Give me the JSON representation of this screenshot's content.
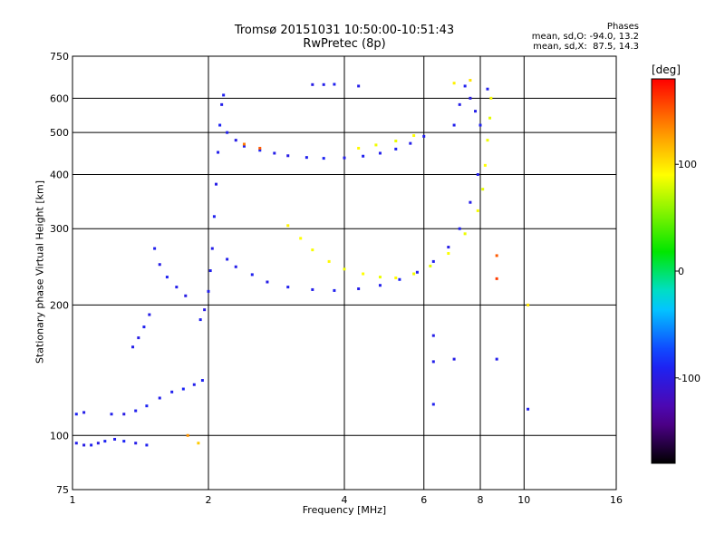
{
  "header": {
    "title_line1": "Tromsø 20151031 10:50:00-10:51:43",
    "title_line2": "RwPretec (8p)",
    "stats_title": "Phases",
    "stats_o": "mean, sd,O: -94.0, 13.2",
    "stats_x": "mean, sd,X:  87.5, 14.3"
  },
  "colorbar": {
    "unit": "[deg]",
    "range": [
      -180,
      180
    ],
    "ticks": [
      100,
      0,
      -100
    ],
    "tick_labels": [
      "100",
      "0",
      "-100"
    ]
  },
  "chart_data": {
    "type": "scatter",
    "xlabel": "Frequency [MHz]",
    "ylabel": "Stationary phase Virtual Height [km]",
    "xscale": "log",
    "yscale": "log",
    "xlim": [
      1,
      16
    ],
    "ylim": [
      75,
      750
    ],
    "grid": true,
    "xticks": [
      1,
      2,
      4,
      6,
      8,
      10,
      16
    ],
    "xtick_labels": [
      "1",
      "2",
      "4",
      "6",
      "8",
      "10",
      "16"
    ],
    "yticks": [
      75,
      100,
      200,
      300,
      400,
      500,
      600,
      750
    ],
    "ytick_labels": [
      "75",
      "100",
      "200",
      "300",
      "400",
      "500",
      "600",
      "750"
    ],
    "series": [
      {
        "mode": "O",
        "points": [
          [
            1.02,
            96,
            -95
          ],
          [
            1.06,
            95,
            -98
          ],
          [
            1.1,
            95,
            -92
          ],
          [
            1.14,
            96,
            -100
          ],
          [
            1.18,
            97,
            -90
          ],
          [
            1.24,
            98,
            -95
          ],
          [
            1.3,
            97,
            -88
          ],
          [
            1.38,
            96,
            -97
          ],
          [
            1.46,
            95,
            -92
          ],
          [
            1.02,
            112,
            -90
          ],
          [
            1.06,
            113,
            -96
          ],
          [
            1.22,
            112,
            -94
          ],
          [
            1.3,
            112,
            -99
          ],
          [
            1.38,
            114,
            -93
          ],
          [
            1.46,
            117,
            -90
          ],
          [
            1.56,
            122,
            -95
          ],
          [
            1.66,
            126,
            -92
          ],
          [
            1.76,
            128,
            -88
          ],
          [
            1.86,
            131,
            -94
          ],
          [
            1.94,
            134,
            -91
          ],
          [
            1.36,
            160,
            -95
          ],
          [
            1.4,
            168,
            -98
          ],
          [
            1.44,
            178,
            -92
          ],
          [
            1.48,
            190,
            -96
          ],
          [
            1.52,
            270,
            -93
          ],
          [
            1.56,
            248,
            -97
          ],
          [
            1.62,
            232,
            -91
          ],
          [
            1.7,
            220,
            -95
          ],
          [
            1.78,
            210,
            -98
          ],
          [
            1.92,
            185,
            -92
          ],
          [
            1.96,
            195,
            -99
          ],
          [
            2.0,
            215,
            -94
          ],
          [
            2.02,
            240,
            -93
          ],
          [
            2.04,
            270,
            -96
          ],
          [
            2.06,
            320,
            -92
          ],
          [
            2.08,
            380,
            -97
          ],
          [
            2.1,
            450,
            -94
          ],
          [
            2.12,
            520,
            -90
          ],
          [
            2.14,
            580,
            -95
          ],
          [
            2.16,
            610,
            -92
          ],
          [
            2.2,
            500,
            -93
          ],
          [
            2.3,
            480,
            -97
          ],
          [
            2.4,
            465,
            -95
          ],
          [
            2.6,
            455,
            -92
          ],
          [
            2.8,
            448,
            -96
          ],
          [
            3.0,
            442,
            -98
          ],
          [
            3.3,
            438,
            -93
          ],
          [
            3.6,
            436,
            -90
          ],
          [
            4.0,
            437,
            -95
          ],
          [
            4.4,
            441,
            -92
          ],
          [
            4.8,
            448,
            -94
          ],
          [
            5.2,
            458,
            -91
          ],
          [
            5.6,
            472,
            -95
          ],
          [
            6.0,
            490,
            -93
          ],
          [
            2.2,
            255,
            -94
          ],
          [
            2.3,
            245,
            -96
          ],
          [
            2.5,
            235,
            -92
          ],
          [
            2.7,
            226,
            -97
          ],
          [
            3.0,
            220,
            -93
          ],
          [
            3.4,
            217,
            -95
          ],
          [
            3.8,
            216,
            -92
          ],
          [
            4.3,
            218,
            -96
          ],
          [
            4.8,
            222,
            -94
          ],
          [
            5.3,
            229,
            -90
          ],
          [
            5.8,
            238,
            -95
          ],
          [
            6.3,
            252,
            -93
          ],
          [
            6.8,
            272,
            -97
          ],
          [
            7.2,
            300,
            -92
          ],
          [
            7.6,
            345,
            -96
          ],
          [
            7.9,
            400,
            -94
          ],
          [
            3.4,
            645,
            -98
          ],
          [
            3.6,
            645,
            -95
          ],
          [
            3.8,
            646,
            -92
          ],
          [
            4.3,
            640,
            -96
          ],
          [
            7.0,
            520,
            -93
          ],
          [
            7.2,
            580,
            -96
          ],
          [
            7.4,
            640,
            -92
          ],
          [
            7.6,
            600,
            -98
          ],
          [
            7.8,
            560,
            -95
          ],
          [
            8.0,
            520,
            -91
          ],
          [
            8.3,
            630,
            -94
          ],
          [
            6.3,
            170,
            -96
          ],
          [
            6.3,
            148,
            -94
          ],
          [
            6.3,
            118,
            -92
          ],
          [
            7.0,
            150,
            -97
          ],
          [
            8.7,
            150,
            -95
          ],
          [
            10.2,
            115,
            -93
          ]
        ]
      },
      {
        "mode": "X",
        "points": [
          [
            3.0,
            305,
            95
          ],
          [
            3.2,
            285,
            90
          ],
          [
            3.4,
            268,
            88
          ],
          [
            3.7,
            252,
            92
          ],
          [
            4.0,
            242,
            86
          ],
          [
            4.4,
            236,
            90
          ],
          [
            4.8,
            232,
            84
          ],
          [
            5.2,
            231,
            91
          ],
          [
            5.7,
            236,
            87
          ],
          [
            6.2,
            246,
            82
          ],
          [
            6.8,
            263,
            89
          ],
          [
            7.4,
            292,
            85
          ],
          [
            7.9,
            330,
            88
          ],
          [
            8.1,
            370,
            83
          ],
          [
            8.2,
            420,
            90
          ],
          [
            8.3,
            480,
            86
          ],
          [
            8.4,
            540,
            82
          ],
          [
            8.45,
            600,
            88
          ],
          [
            4.3,
            460,
            92
          ],
          [
            4.7,
            468,
            86
          ],
          [
            5.2,
            478,
            84
          ],
          [
            5.7,
            492,
            90
          ],
          [
            2.4,
            470,
            140
          ],
          [
            2.6,
            460,
            150
          ],
          [
            1.8,
            100,
            130
          ],
          [
            1.9,
            96,
            110
          ],
          [
            7.0,
            650,
            95
          ],
          [
            7.6,
            660,
            100
          ],
          [
            10.2,
            200,
            100
          ],
          [
            8.7,
            260,
            150
          ],
          [
            8.7,
            230,
            160
          ]
        ]
      }
    ]
  }
}
